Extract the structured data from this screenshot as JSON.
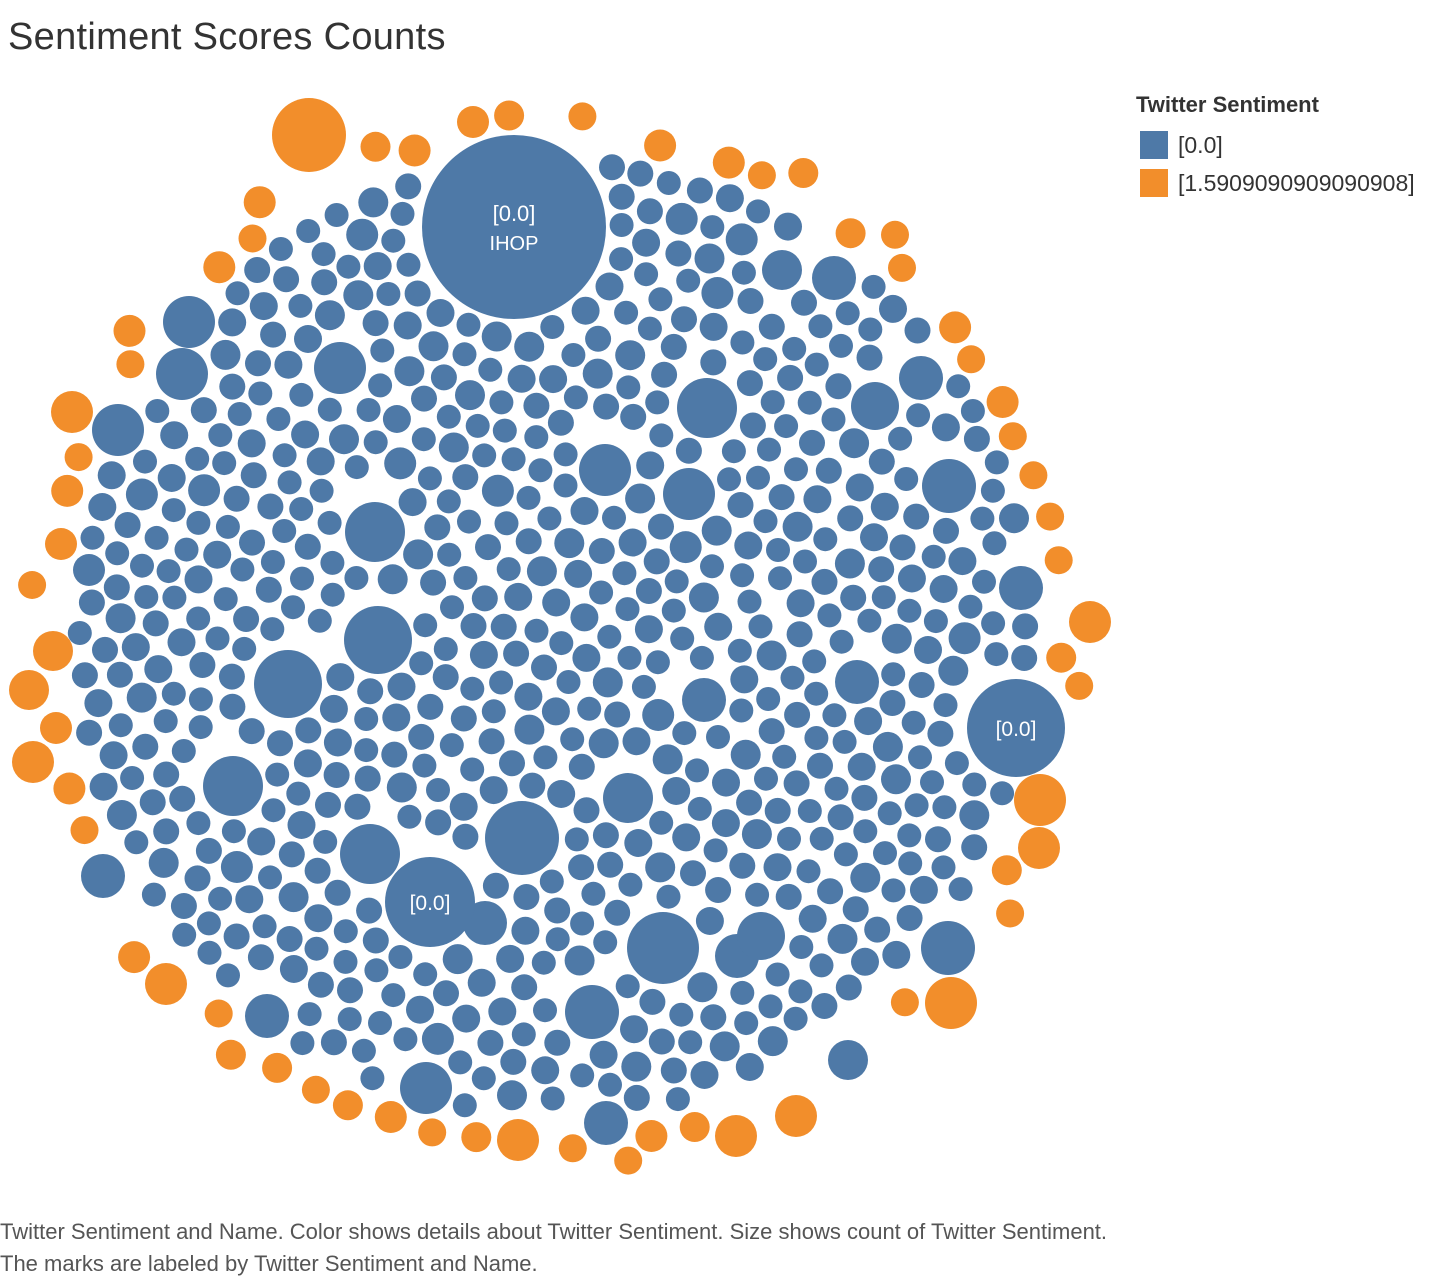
{
  "title": "Sentiment Scores Counts",
  "caption": "Twitter Sentiment and Name.  Color shows details about Twitter Sentiment.  Size shows count of Twitter Sentiment.  The marks are labeled by Twitter Sentiment and Name.",
  "legend": {
    "title": "Twitter Sentiment",
    "items": [
      {
        "label": "[0.0]",
        "color": "#4e79a7"
      },
      {
        "label": "[1.5909090909090908]",
        "color": "#f28e2b"
      }
    ]
  },
  "chart_data": {
    "type": "packed-bubble",
    "color_field": "Twitter Sentiment",
    "size_field": "count of Twitter Sentiment",
    "label_fields": [
      "Twitter Sentiment",
      "Name"
    ],
    "categories": [
      "[0.0]",
      "[1.5909090909090908]"
    ],
    "labeled_marks": [
      {
        "sentiment": "[0.0]",
        "name": "IHOP"
      },
      {
        "sentiment": "[0.0]",
        "name": ""
      },
      {
        "sentiment": "[0.0]",
        "name": ""
      }
    ]
  }
}
